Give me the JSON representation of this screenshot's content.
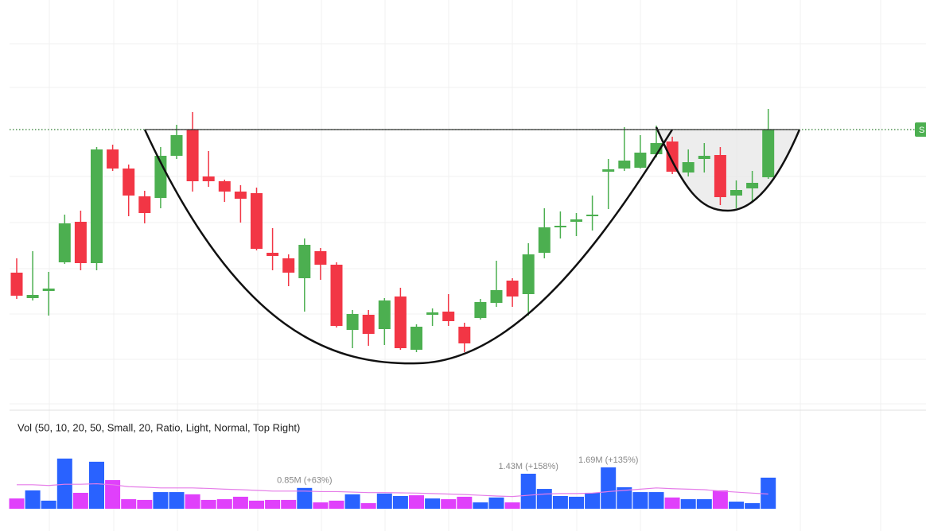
{
  "chart_data": {
    "type": "candlestick",
    "ylim": [
      0,
      520
    ],
    "open": [
      177,
      145,
      154,
      190,
      241,
      189,
      332,
      308,
      273,
      271,
      324,
      357,
      298,
      292,
      279,
      277,
      202,
      195,
      170,
      204,
      187,
      105,
      124,
      106,
      147,
      80,
      124,
      128,
      109,
      120,
      139,
      167,
      150,
      202,
      234,
      241,
      248,
      304,
      308,
      309,
      326,
      342,
      303,
      320,
      325,
      274,
      283,
      297
    ],
    "high": [
      195,
      204,
      178,
      250,
      255,
      335,
      338,
      313,
      280,
      335,
      363,
      379,
      330,
      294,
      287,
      284,
      233,
      200,
      220,
      208,
      190,
      130,
      130,
      145,
      158,
      112,
      132,
      150,
      114,
      144,
      192,
      170,
      214,
      258,
      254,
      252,
      274,
      320,
      360,
      350,
      362,
      348,
      332,
      340,
      335,
      293,
      305,
      383
    ],
    "low": [
      144,
      142,
      123,
      188,
      180,
      180,
      305,
      248,
      239,
      258,
      320,
      279,
      285,
      266,
      240,
      205,
      180,
      160,
      128,
      168,
      108,
      82,
      85,
      86,
      80,
      77,
      110,
      110,
      77,
      118,
      134,
      134,
      123,
      195,
      220,
      223,
      230,
      257,
      305,
      308,
      322,
      301,
      298,
      303,
      262,
      258,
      265,
      295
    ],
    "close": [
      148,
      149,
      157,
      239,
      189,
      332,
      308,
      274,
      252,
      324,
      350,
      292,
      292,
      279,
      270,
      207,
      198,
      177,
      212,
      187,
      110,
      125,
      100,
      142,
      82,
      109,
      127,
      116,
      88,
      140,
      155,
      147,
      200,
      234,
      236,
      244,
      250,
      307,
      318,
      328,
      340,
      304,
      316,
      324,
      272,
      281,
      290,
      357
    ],
    "up_color": "#4caf50",
    "down_color": "#f23645",
    "resistance_level": 357,
    "resistance_label": "S",
    "volume": {
      "legend": "Vol (50, 10, 20, 50, Small, 20, Ratio, Light, Normal, Top Right)",
      "ylim": [
        0,
        2.5
      ],
      "values": [
        0.42,
        0.75,
        0.33,
        2.05,
        0.65,
        1.92,
        1.17,
        0.39,
        0.36,
        0.68,
        0.68,
        0.59,
        0.36,
        0.39,
        0.49,
        0.33,
        0.36,
        0.36,
        0.85,
        0.26,
        0.33,
        0.59,
        0.23,
        0.62,
        0.52,
        0.55,
        0.42,
        0.39,
        0.49,
        0.26,
        0.46,
        0.26,
        1.43,
        0.81,
        0.52,
        0.49,
        0.65,
        1.69,
        0.88,
        0.68,
        0.68,
        0.46,
        0.39,
        0.39,
        0.75,
        0.29,
        0.23,
        1.27
      ],
      "value_labels": [
        null,
        null,
        null,
        null,
        null,
        null,
        null,
        null,
        null,
        null,
        null,
        null,
        null,
        null,
        null,
        null,
        null,
        null,
        "0.85M (+63%)",
        null,
        null,
        null,
        null,
        null,
        null,
        null,
        null,
        null,
        null,
        null,
        null,
        null,
        "1.43M (+158%)",
        null,
        null,
        null,
        null,
        "1.69M (+135%)",
        null,
        null,
        null,
        null,
        null,
        null,
        null,
        null,
        null,
        null
      ],
      "kinds": [
        "low",
        "high",
        "high",
        "high",
        "low",
        "high",
        "low",
        "low",
        "low",
        "high",
        "high",
        "low",
        "low",
        "low",
        "low",
        "low",
        "low",
        "low",
        "high",
        "low",
        "low",
        "high",
        "low",
        "high",
        "high",
        "low",
        "high",
        "low",
        "low",
        "high",
        "high",
        "low",
        "high",
        "high",
        "high",
        "high",
        "high",
        "high",
        "high",
        "high",
        "high",
        "low",
        "high",
        "high",
        "low",
        "high",
        "high",
        "high"
      ],
      "high_color": "#2962ff",
      "low_color": "#e040fb",
      "ma": [
        0.98,
        0.98,
        0.95,
        1.0,
        1.0,
        1.02,
        0.98,
        0.9,
        0.88,
        0.85,
        0.85,
        0.85,
        0.83,
        0.8,
        0.78,
        0.75,
        0.72,
        0.72,
        0.72,
        0.7,
        0.7,
        0.68,
        0.66,
        0.66,
        0.65,
        0.64,
        0.62,
        0.6,
        0.58,
        0.55,
        0.52,
        0.5,
        0.55,
        0.6,
        0.62,
        0.62,
        0.64,
        0.7,
        0.75,
        0.8,
        0.85,
        0.82,
        0.8,
        0.78,
        0.72,
        0.68,
        0.64,
        0.6
      ],
      "ma_color": "#e57ce8"
    }
  }
}
